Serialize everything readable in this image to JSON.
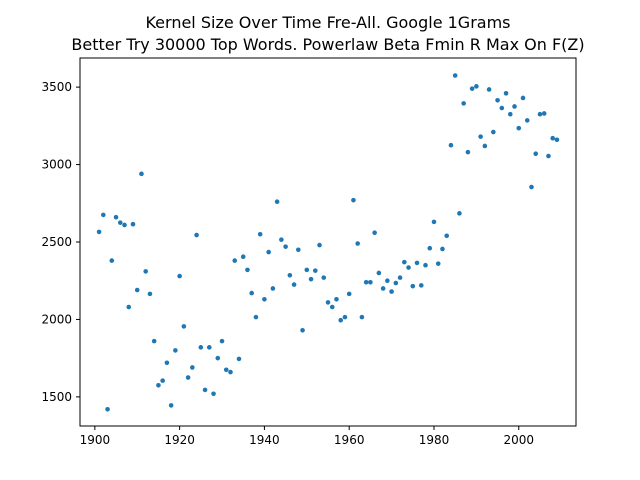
{
  "chart_data": {
    "type": "scatter",
    "title": "Kernel Size Over Time Fre-All. Google 1Grams",
    "subtitle": "Better Try 30000 Top Words. Powerlaw Beta Fmin R Max On F(Z)",
    "xlabel": "",
    "ylabel": "",
    "xlim": [
      1896.5,
      2013.5
    ],
    "ylim": [
      1312,
      3688
    ],
    "grid": false,
    "color": "#1f77b4",
    "x_ticks": [
      1900,
      1920,
      1940,
      1960,
      1980,
      2000
    ],
    "y_ticks": [
      1500,
      2000,
      2500,
      3000,
      3500
    ],
    "x": [
      1901,
      1902,
      1903,
      1904,
      1905,
      1906,
      1907,
      1908,
      1909,
      1910,
      1911,
      1912,
      1913,
      1914,
      1915,
      1916,
      1917,
      1918,
      1919,
      1920,
      1921,
      1922,
      1923,
      1924,
      1925,
      1926,
      1927,
      1928,
      1929,
      1930,
      1931,
      1932,
      1933,
      1934,
      1935,
      1936,
      1937,
      1938,
      1939,
      1940,
      1941,
      1942,
      1943,
      1944,
      1945,
      1946,
      1947,
      1948,
      1949,
      1950,
      1951,
      1952,
      1953,
      1954,
      1955,
      1956,
      1957,
      1958,
      1959,
      1960,
      1961,
      1962,
      1963,
      1964,
      1965,
      1966,
      1967,
      1968,
      1969,
      1970,
      1971,
      1972,
      1973,
      1974,
      1975,
      1976,
      1977,
      1978,
      1979,
      1980,
      1981,
      1982,
      1983,
      1984,
      1985,
      1986,
      1987,
      1988,
      1989,
      1990,
      1991,
      1992,
      1993,
      1994,
      1995,
      1996,
      1997,
      1998,
      1999,
      2000,
      2001,
      2002,
      2003,
      2004,
      2005,
      2006,
      2007,
      2008,
      2009
    ],
    "y": [
      2565,
      2675,
      1420,
      2380,
      2660,
      2625,
      2610,
      2080,
      2615,
      2190,
      2940,
      2310,
      2165,
      1860,
      1575,
      1605,
      1720,
      1445,
      1800,
      2280,
      1955,
      1625,
      1690,
      2545,
      1820,
      1545,
      1820,
      1520,
      1750,
      1860,
      1675,
      1660,
      2380,
      1745,
      2405,
      2320,
      2170,
      2015,
      2550,
      2130,
      2435,
      2200,
      2760,
      2515,
      2470,
      2285,
      2225,
      2450,
      1930,
      2320,
      2260,
      2315,
      2480,
      2270,
      2110,
      2080,
      2130,
      1995,
      2015,
      2165,
      2770,
      2490,
      2015,
      2240,
      2240,
      2560,
      2300,
      2200,
      2250,
      2180,
      2235,
      2270,
      2370,
      2335,
      2215,
      2365,
      2220,
      2350,
      2460,
      2630,
      2360,
      2455,
      2540,
      3125,
      3575,
      2685,
      3395,
      3080,
      3490,
      3505,
      3180,
      3120,
      3485,
      3210,
      3415,
      3365,
      3460,
      3325,
      3375,
      3235,
      3430,
      3285,
      2855,
      3070,
      3325,
      3330,
      3055,
      3170,
      3160
    ]
  }
}
